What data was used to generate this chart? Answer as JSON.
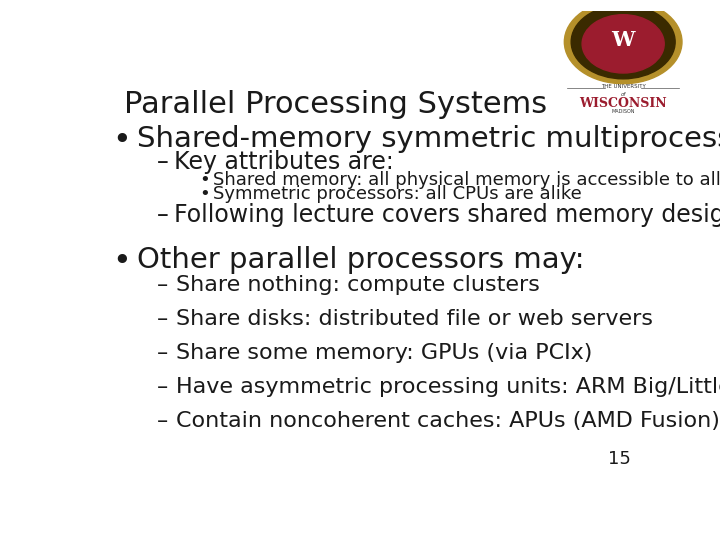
{
  "title": "Parallel Processing Systems",
  "title_fontsize": 22,
  "background_color": "#ffffff",
  "text_color": "#1a1a1a",
  "slide_number": "15",
  "bullet1": "Shared-memory symmetric multiprocessors",
  "bullet1_fontsize": 21,
  "sub1": "Key attributes are:",
  "sub1_fontsize": 17,
  "subsub1": "Shared memory: all physical memory is accessible to all CPUs",
  "subsub1_fontsize": 13,
  "subsub2": "Symmetric processors: all CPUs are alike",
  "subsub2_fontsize": 13,
  "sub2": "Following lecture covers shared memory design",
  "sub2_fontsize": 17,
  "bullet2": "Other parallel processors may:",
  "bullet2_fontsize": 21,
  "dash_items": [
    "Share nothing: compute clusters",
    "Share disks: distributed file or web servers",
    "Share some memory: GPUs (via PCIx)",
    "Have asymmetric processing units: ARM Big/Little",
    "Contain noncoherent caches: APUs (AMD Fusion)"
  ],
  "dash_fontsize": 16,
  "logo_gold": "#b5902a",
  "logo_red": "#9b1c2e"
}
